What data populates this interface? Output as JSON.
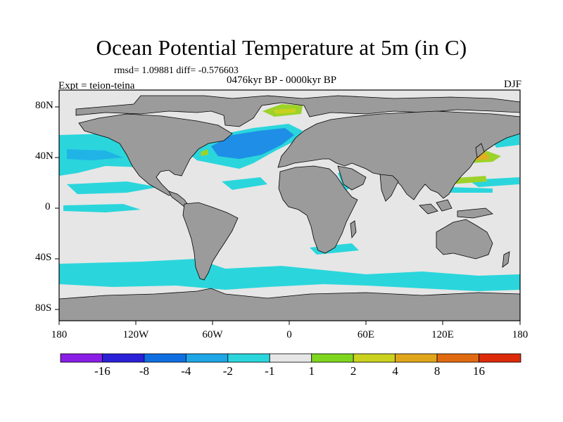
{
  "title": "Ocean Potential Temperature at 5m (in C)",
  "stats_line": "rmsd= 1.09881 diff= -0.576603",
  "period_label": "0476kyr BP - 0000kyr BP",
  "experiment_label": "Expt = teion-teina",
  "season_label": "DJF",
  "map": {
    "projection": "cylindrical equidistant",
    "lon_range": [
      -180,
      180
    ],
    "lat_range": [
      -90,
      90
    ],
    "x_ticks": [
      "180",
      "120W",
      "60W",
      "0",
      "60E",
      "120E",
      "180"
    ],
    "y_ticks": [
      "80N",
      "40N",
      "0",
      "40S",
      "80S"
    ],
    "land_color": "#9b9b9b",
    "neutral_color": "#e6e6e6"
  },
  "colorbar": {
    "levels": [
      "-16",
      "-8",
      "-4",
      "-2",
      "-1",
      "1",
      "2",
      "4",
      "8",
      "16"
    ],
    "colors": [
      "#8a1ee6",
      "#2a20d8",
      "#0f6fe0",
      "#1ea6e6",
      "#2ad6dc",
      "#e6e6e6",
      "#7ed61e",
      "#cad21e",
      "#e0a61a",
      "#e06a10",
      "#dc2a0a"
    ]
  },
  "colors": {
    "strong_cool": "#1e8ee6",
    "mid_cool": "#20b4e6",
    "cool": "#2ad6dc",
    "warm_green": "#9cd22a",
    "warm_yellow": "#c8d21e",
    "warm_orange": "#e0b020"
  }
}
